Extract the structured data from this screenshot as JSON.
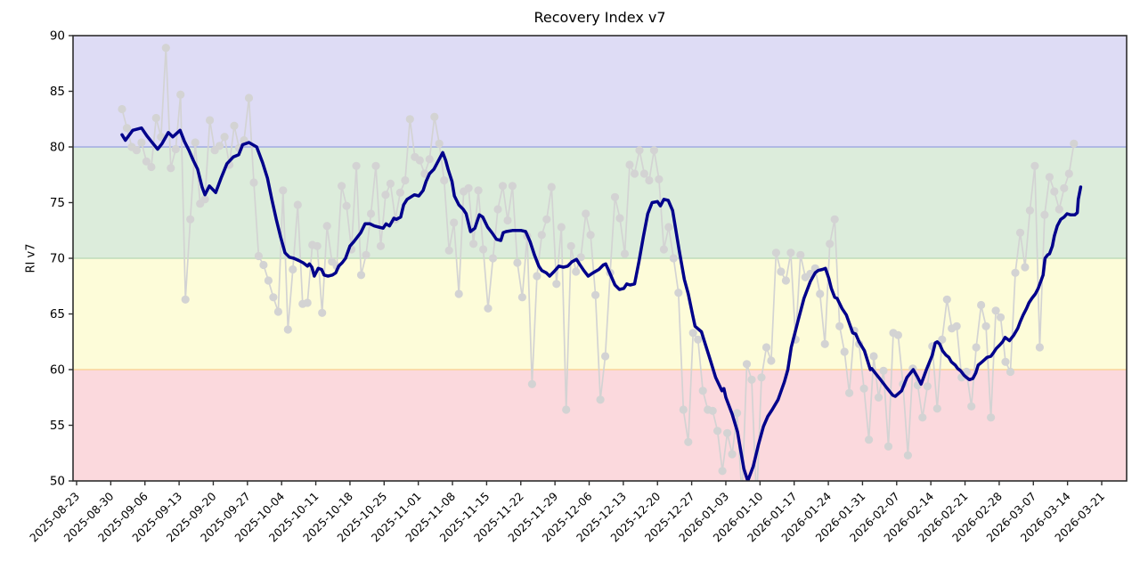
{
  "chart_data": {
    "type": "line",
    "title": "Recovery Index v7",
    "ylabel": "RI v7",
    "ylim": [
      50,
      90
    ],
    "yticks": [
      50,
      55,
      60,
      65,
      70,
      75,
      80,
      85,
      90
    ],
    "x_axis": {
      "start_date": "2025-08-23",
      "tick_interval_days": 7,
      "tick_labels": [
        "2025-08-23",
        "2025-08-30",
        "2025-09-06",
        "2025-09-13",
        "2025-09-20",
        "2025-09-27",
        "2025-10-04",
        "2025-10-11",
        "2025-10-18",
        "2025-10-25",
        "2025-11-01",
        "2025-11-08",
        "2025-11-15",
        "2025-11-22",
        "2025-11-29",
        "2025-12-06",
        "2025-12-13",
        "2025-12-20",
        "2025-12-27",
        "2026-01-03",
        "2026-01-10",
        "2026-01-17",
        "2026-01-24",
        "2026-01-31",
        "2026-02-07",
        "2026-02-14",
        "2026-02-21",
        "2026-02-28",
        "2026-03-07",
        "2026-03-14",
        "2026-03-21"
      ]
    },
    "bands": [
      {
        "range": [
          80,
          90
        ],
        "fill": "#dedcf5",
        "edge": null
      },
      {
        "range": [
          70,
          80
        ],
        "fill": "#dcecdb",
        "edge": "#a2abe1"
      },
      {
        "range": [
          60,
          70
        ],
        "fill": "#fdfcd9",
        "edge": "#bedcba"
      },
      {
        "range": [
          50,
          60
        ],
        "fill": "#fbd9dd",
        "edge": "#f9d49a"
      }
    ],
    "grid": false,
    "legend": "none",
    "series": [
      {
        "name": "daily-raw",
        "style": "scatter-line",
        "color": "#d3d3d3",
        "line_width": 1.7,
        "marker_radius": 4.6,
        "start_day_offset": 9.3,
        "step_days": 1,
        "values": [
          83.4,
          81.7,
          80.0,
          79.7,
          80.4,
          78.7,
          78.2,
          82.6,
          80.9,
          88.9,
          78.1,
          79.8,
          84.7,
          66.3,
          73.5,
          80.4,
          74.9,
          75.3,
          82.4,
          79.7,
          80.1,
          80.9,
          78.4,
          81.9,
          79.9,
          80.6,
          84.4,
          76.8,
          70.2,
          69.4,
          68.0,
          66.5,
          65.2,
          76.1,
          63.6,
          69.0,
          74.8,
          65.9,
          66.0,
          71.2,
          71.1,
          65.1,
          72.9,
          69.7,
          69.3,
          76.5,
          74.7,
          70.8,
          78.3,
          68.5,
          70.3,
          74.0,
          78.3,
          71.1,
          75.7,
          76.7,
          73.5,
          75.9,
          77.0,
          82.5,
          79.1,
          78.8,
          77.6,
          78.9,
          82.7,
          80.3,
          77.0,
          70.7,
          73.2,
          66.8,
          76.0,
          76.3,
          71.3,
          76.1,
          70.8,
          65.5,
          70.0,
          74.4,
          76.5,
          73.4,
          76.5,
          69.6,
          66.5,
          72.0,
          58.7,
          68.4,
          72.1,
          73.5,
          76.4,
          67.7,
          72.8,
          56.4,
          71.1,
          68.8,
          70.1,
          74.0,
          72.1,
          66.7,
          57.3,
          61.2,
          68.7,
          75.5,
          73.6,
          70.4,
          78.4,
          77.6,
          79.7,
          77.6,
          77.0,
          79.7,
          77.1,
          70.8,
          72.8,
          70.0,
          66.9,
          56.4,
          53.5,
          63.3,
          62.7,
          58.1,
          56.4,
          56.3,
          54.5,
          50.9,
          54.3,
          52.4,
          56.1,
          48.5,
          60.5,
          59.1,
          48.0,
          59.3,
          62.0,
          60.8,
          70.5,
          68.8,
          68.0,
          70.5,
          62.7,
          70.3,
          68.3,
          68.6,
          69.1,
          66.8,
          62.3,
          71.3,
          73.5,
          63.9,
          61.6,
          57.9,
          63.5,
          62.3,
          58.3,
          53.7,
          61.2,
          57.5,
          59.9,
          53.1,
          63.3,
          63.1,
          58.7,
          52.3,
          60.1,
          58.6,
          55.7,
          58.5,
          62.1,
          56.5,
          62.7,
          66.3,
          63.7,
          63.9,
          59.3,
          59.8,
          56.7,
          62.0,
          65.8,
          63.9,
          55.7,
          65.3,
          64.7,
          60.7,
          59.8,
          68.7,
          72.3,
          69.2,
          74.3,
          78.3,
          62.0,
          73.9,
          77.3,
          76.0,
          74.4,
          76.3,
          77.6,
          80.3
        ]
      },
      {
        "name": "smoothed",
        "style": "line",
        "color": "#00008b",
        "line_width": 3.5,
        "start_day_offset": 9.3,
        "points": [
          [
            0,
            81.1
          ],
          [
            0.7,
            80.6
          ],
          [
            2.2,
            81.5
          ],
          [
            4,
            81.7
          ],
          [
            5.1,
            81.0
          ],
          [
            6,
            80.5
          ],
          [
            7.3,
            79.8
          ],
          [
            8.2,
            80.3
          ],
          [
            9.5,
            81.3
          ],
          [
            10.4,
            80.9
          ],
          [
            11.9,
            81.5
          ],
          [
            12.8,
            80.5
          ],
          [
            13.7,
            79.7
          ],
          [
            14.6,
            78.8
          ],
          [
            15.5,
            78.0
          ],
          [
            16.4,
            76.4
          ],
          [
            17,
            75.7
          ],
          [
            17.9,
            76.5
          ],
          [
            19.2,
            75.9
          ],
          [
            20.3,
            77.2
          ],
          [
            21.5,
            78.5
          ],
          [
            22.8,
            79.1
          ],
          [
            23.9,
            79.3
          ],
          [
            24.7,
            80.2
          ],
          [
            26,
            80.4
          ],
          [
            27.6,
            80.0
          ],
          [
            28.8,
            78.6
          ],
          [
            29.8,
            77.2
          ],
          [
            30.7,
            75.3
          ],
          [
            31.6,
            73.5
          ],
          [
            32.5,
            71.9
          ],
          [
            33.4,
            70.5
          ],
          [
            34.3,
            70.1
          ],
          [
            35.2,
            70.0
          ],
          [
            36.2,
            69.8
          ],
          [
            37.1,
            69.6
          ],
          [
            38,
            69.3
          ],
          [
            38.4,
            69.5
          ],
          [
            38.9,
            69.2
          ],
          [
            39.4,
            68.4
          ],
          [
            40.2,
            69.1
          ],
          [
            40.9,
            69.0
          ],
          [
            41.4,
            68.5
          ],
          [
            42.2,
            68.4
          ],
          [
            43.1,
            68.5
          ],
          [
            43.8,
            68.7
          ],
          [
            44.4,
            69.3
          ],
          [
            45.1,
            69.6
          ],
          [
            45.8,
            70.0
          ],
          [
            46.7,
            71.1
          ],
          [
            47.5,
            71.5
          ],
          [
            48.9,
            72.3
          ],
          [
            49.8,
            73.1
          ],
          [
            50.8,
            73.1
          ],
          [
            51.7,
            72.9
          ],
          [
            52.6,
            72.8
          ],
          [
            53.5,
            72.7
          ],
          [
            54.1,
            73.1
          ],
          [
            54.8,
            72.9
          ],
          [
            55.7,
            73.6
          ],
          [
            56.2,
            73.5
          ],
          [
            57.1,
            73.7
          ],
          [
            57.7,
            74.8
          ],
          [
            58.4,
            75.3
          ],
          [
            59.9,
            75.7
          ],
          [
            60.8,
            75.6
          ],
          [
            61.7,
            76.1
          ],
          [
            62.3,
            76.9
          ],
          [
            63,
            77.6
          ],
          [
            63.9,
            78.0
          ],
          [
            64.5,
            78.5
          ],
          [
            65.7,
            79.5
          ],
          [
            66.3,
            78.8
          ],
          [
            66.8,
            78.0
          ],
          [
            67.6,
            76.9
          ],
          [
            68.1,
            75.6
          ],
          [
            69,
            74.8
          ],
          [
            69.9,
            74.4
          ],
          [
            70.5,
            74.0
          ],
          [
            71.4,
            72.4
          ],
          [
            72.3,
            72.7
          ],
          [
            73.2,
            73.9
          ],
          [
            73.9,
            73.7
          ],
          [
            74.9,
            72.8
          ],
          [
            75.8,
            72.3
          ],
          [
            76.7,
            71.7
          ],
          [
            77.6,
            71.6
          ],
          [
            78.1,
            72.3
          ],
          [
            78.7,
            72.4
          ],
          [
            80,
            72.5
          ],
          [
            81.8,
            72.5
          ],
          [
            82.7,
            72.4
          ],
          [
            83.6,
            71.5
          ],
          [
            84.5,
            70.3
          ],
          [
            85.4,
            69.3
          ],
          [
            86,
            68.9
          ],
          [
            86.9,
            68.7
          ],
          [
            87.6,
            68.4
          ],
          [
            88.5,
            68.8
          ],
          [
            89.5,
            69.3
          ],
          [
            90.4,
            69.2
          ],
          [
            91.3,
            69.3
          ],
          [
            92.2,
            69.7
          ],
          [
            93.1,
            69.9
          ],
          [
            93.7,
            69.5
          ],
          [
            94.6,
            68.9
          ],
          [
            95.5,
            68.4
          ],
          [
            96.5,
            68.7
          ],
          [
            97.7,
            69.0
          ],
          [
            98.6,
            69.4
          ],
          [
            99.1,
            69.5
          ],
          [
            99.7,
            68.9
          ],
          [
            101,
            67.6
          ],
          [
            101.9,
            67.2
          ],
          [
            102.8,
            67.3
          ],
          [
            103.4,
            67.7
          ],
          [
            104.1,
            67.6
          ],
          [
            105,
            67.7
          ],
          [
            105.9,
            69.7
          ],
          [
            106.8,
            71.9
          ],
          [
            107.7,
            74.0
          ],
          [
            108.6,
            75.0
          ],
          [
            109.7,
            75.1
          ],
          [
            110.3,
            74.7
          ],
          [
            111,
            75.3
          ],
          [
            111.9,
            75.2
          ],
          [
            112.8,
            74.3
          ],
          [
            113.4,
            72.7
          ],
          [
            114.1,
            70.8
          ],
          [
            115.2,
            68.1
          ],
          [
            116,
            66.8
          ],
          [
            116.9,
            64.9
          ],
          [
            117.4,
            63.9
          ],
          [
            118.7,
            63.4
          ],
          [
            119.2,
            62.7
          ],
          [
            120.5,
            60.9
          ],
          [
            121.6,
            59.3
          ],
          [
            122.9,
            58.1
          ],
          [
            123.3,
            58.3
          ],
          [
            123.7,
            57.5
          ],
          [
            125,
            56.0
          ],
          [
            126.1,
            54.4
          ],
          [
            127.4,
            51.1
          ],
          [
            128.2,
            50.0
          ],
          [
            129.3,
            51.3
          ],
          [
            130.4,
            53.3
          ],
          [
            131.4,
            54.9
          ],
          [
            132.3,
            55.8
          ],
          [
            133.2,
            56.4
          ],
          [
            134.4,
            57.3
          ],
          [
            135.7,
            58.9
          ],
          [
            136.4,
            60.0
          ],
          [
            137.1,
            62.0
          ],
          [
            138.5,
            64.4
          ],
          [
            139.7,
            66.4
          ],
          [
            141,
            67.9
          ],
          [
            142,
            68.7
          ],
          [
            142.6,
            68.9
          ],
          [
            143.5,
            69.0
          ],
          [
            144.1,
            69.1
          ],
          [
            144.8,
            68.2
          ],
          [
            145.3,
            67.3
          ],
          [
            146,
            66.5
          ],
          [
            146.5,
            66.4
          ],
          [
            147.5,
            65.5
          ],
          [
            148.4,
            64.9
          ],
          [
            149.7,
            63.3
          ],
          [
            150.3,
            63.2
          ],
          [
            151,
            62.5
          ],
          [
            152.1,
            61.7
          ],
          [
            153.3,
            60.0
          ],
          [
            153.6,
            60.1
          ],
          [
            154.3,
            59.7
          ],
          [
            155.4,
            59.1
          ],
          [
            156.6,
            58.4
          ],
          [
            157.9,
            57.7
          ],
          [
            158.4,
            57.6
          ],
          [
            159.7,
            58.1
          ],
          [
            160.8,
            59.3
          ],
          [
            162.1,
            60.0
          ],
          [
            163,
            59.3
          ],
          [
            163.7,
            58.7
          ],
          [
            164.8,
            60.0
          ],
          [
            166,
            61.3
          ],
          [
            166.6,
            62.4
          ],
          [
            167,
            62.5
          ],
          [
            167.5,
            62.3
          ],
          [
            168.1,
            61.7
          ],
          [
            168.8,
            61.3
          ],
          [
            169.4,
            61.1
          ],
          [
            169.9,
            60.7
          ],
          [
            170.7,
            60.4
          ],
          [
            171.2,
            60.1
          ],
          [
            171.8,
            59.9
          ],
          [
            172.5,
            59.5
          ],
          [
            173,
            59.3
          ],
          [
            173.6,
            59.1
          ],
          [
            174.3,
            59.2
          ],
          [
            174.9,
            59.7
          ],
          [
            175.4,
            60.4
          ],
          [
            176.2,
            60.7
          ],
          [
            176.7,
            60.9
          ],
          [
            177.2,
            61.1
          ],
          [
            178,
            61.2
          ],
          [
            178.5,
            61.5
          ],
          [
            179.1,
            61.9
          ],
          [
            179.8,
            62.2
          ],
          [
            180.4,
            62.5
          ],
          [
            180.9,
            62.9
          ],
          [
            181.8,
            62.6
          ],
          [
            182.7,
            63.1
          ],
          [
            183.5,
            63.7
          ],
          [
            184,
            64.3
          ],
          [
            184.6,
            64.9
          ],
          [
            185.3,
            65.5
          ],
          [
            185.8,
            66.0
          ],
          [
            186.4,
            66.4
          ],
          [
            187.1,
            66.8
          ],
          [
            187.7,
            67.3
          ],
          [
            188.2,
            67.9
          ],
          [
            188.7,
            68.5
          ],
          [
            189.1,
            70.0
          ],
          [
            189.6,
            70.3
          ],
          [
            190,
            70.4
          ],
          [
            190.6,
            71.1
          ],
          [
            191,
            72.0
          ],
          [
            191.6,
            72.9
          ],
          [
            192.3,
            73.5
          ],
          [
            193,
            73.7
          ],
          [
            193.6,
            74.0
          ],
          [
            194.3,
            73.9
          ],
          [
            195.2,
            73.9
          ],
          [
            195.7,
            74.1
          ],
          [
            195.9,
            75.3
          ],
          [
            196.4,
            76.4
          ]
        ]
      }
    ]
  }
}
